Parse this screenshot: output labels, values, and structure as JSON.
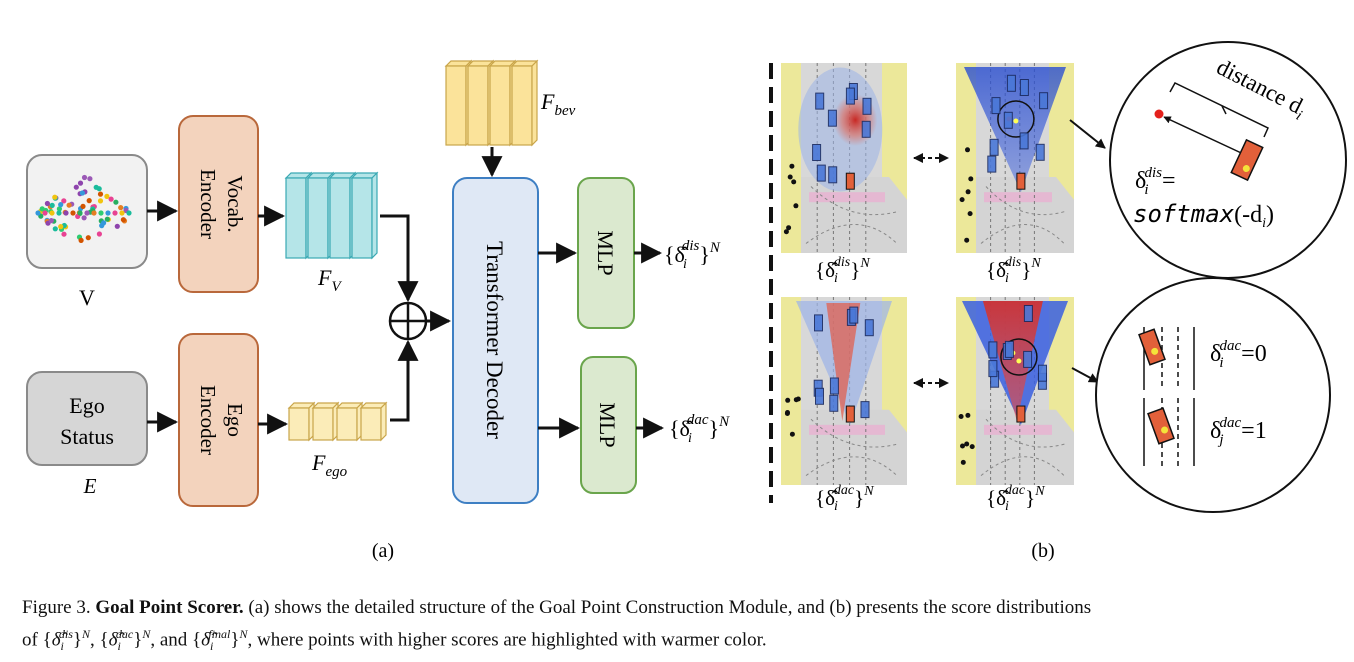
{
  "panel_a": {
    "label": "(a)",
    "vocab_input_label": "V",
    "ego_box_line1": "Ego",
    "ego_box_line2": "Status",
    "ego_input_label": "E",
    "vocab_encoder_line1": "Vocab.",
    "vocab_encoder_line2": "Encoder",
    "ego_encoder_line1": "Ego",
    "ego_encoder_line2": "Encoder",
    "feature_v": "F",
    "feature_v_sub": "V",
    "feature_ego": "F",
    "feature_ego_sub": "ego",
    "feature_bev": "F",
    "feature_bev_sub": "bev",
    "decoder_label": "Transformer Decoder",
    "mlp_top": "MLP",
    "mlp_bottom": "MLP",
    "out_top_sup": "dis",
    "out_bottom_sup": "dac",
    "out_N": "N"
  },
  "panel_b": {
    "label": "(b)",
    "map_labels_sup": [
      "dis",
      "dis",
      "dac",
      "dac"
    ],
    "distance_label": "distance d",
    "distance_sub": "i",
    "dis_formula_lhs_sup": "dis",
    "dis_formula_rhs": "softmax",
    "dis_formula_arg": "(-d",
    "dac_value_top": "=0",
    "dac_value_bottom": "=1",
    "dac_sup": "dac"
  },
  "caption": {
    "prefix": "Figure 3.",
    "title": "Goal Point Scorer.",
    "line1_rest": " (a) shows the detailed structure of the Goal Point Construction Module, and (b) presents the score distributions",
    "line2_of": "of ",
    "line2_rest": ", where points with higher scores are highlighted with warmer color.",
    "sup_dis": "dis",
    "sup_dac": "dac",
    "sup_final": "final"
  }
}
